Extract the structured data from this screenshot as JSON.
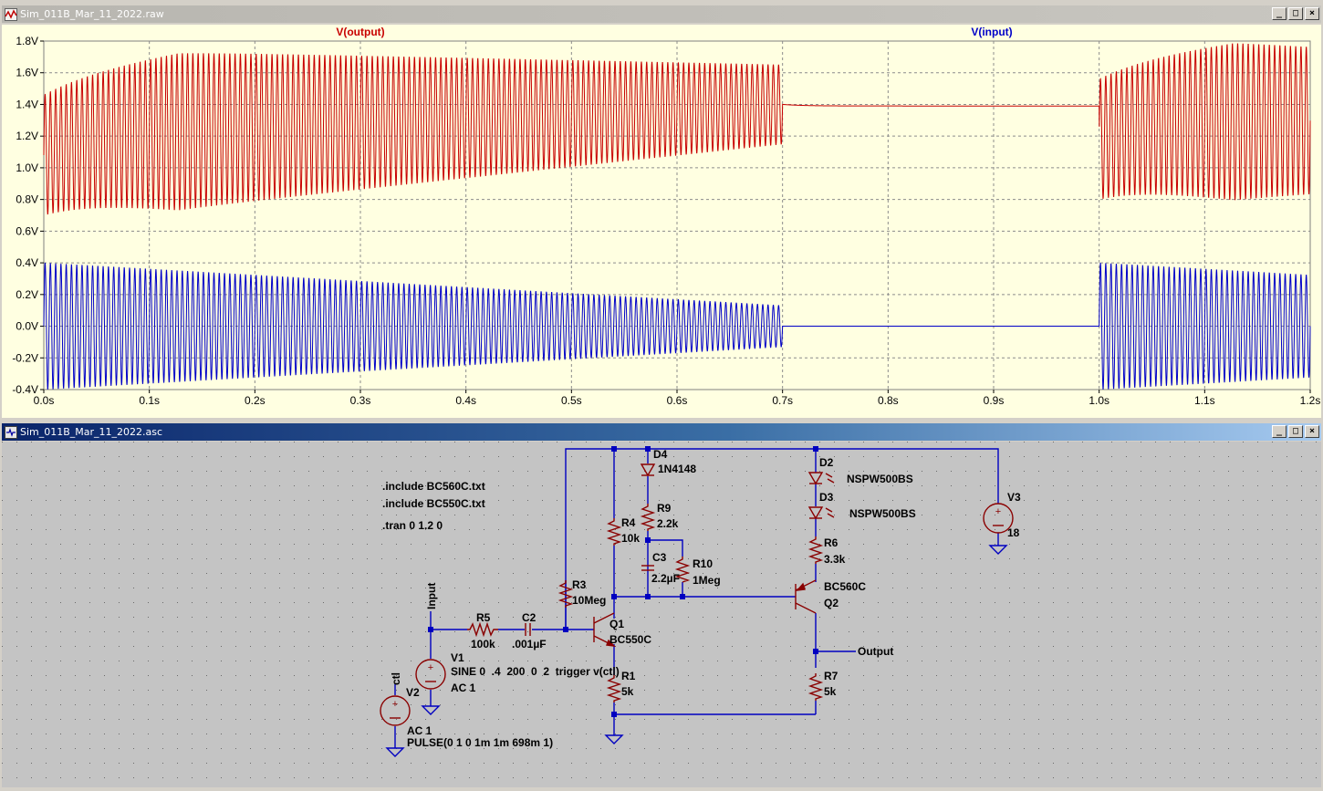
{
  "waveform_window": {
    "title": "Sim_011B_Mar_11_2022.raw",
    "controls": [
      "_",
      "□",
      "×"
    ]
  },
  "schematic_window": {
    "title": "Sim_011B_Mar_11_2022.asc",
    "controls": [
      "_",
      "□",
      "×"
    ]
  },
  "colors": {
    "output": "#c80000",
    "input": "#0000c8",
    "wire": "#0000c0",
    "component": "#8a0000"
  },
  "chart_data": {
    "type": "line",
    "series": [
      {
        "name": "V(output)",
        "color": "#c80000"
      },
      {
        "name": "V(input)",
        "color": "#0000c8"
      }
    ],
    "xlim": [
      0.0,
      1.2
    ],
    "ylim": [
      -0.4,
      1.8
    ],
    "x_ticks": [
      "0.0s",
      "0.1s",
      "0.2s",
      "0.3s",
      "0.4s",
      "0.5s",
      "0.6s",
      "0.7s",
      "0.8s",
      "0.9s",
      "1.0s",
      "1.1s",
      "1.2s"
    ],
    "y_ticks": [
      "1.8V",
      "1.6V",
      "1.4V",
      "1.2V",
      "1.0V",
      "0.8V",
      "0.6V",
      "0.4V",
      "0.2V",
      "0.0V",
      "-0.2V",
      "-0.4V"
    ],
    "grid": true
  },
  "schematic": {
    "directives": [
      ".include BC560C.txt",
      ".include BC550C.txt",
      ".tran 0 1.2 0"
    ],
    "labels": {
      "D4": "D4",
      "D4_val": "1N4148",
      "R9": "R9",
      "R9_val": "2.2k",
      "R4": "R4",
      "R4_val": "10k",
      "C3": "C3",
      "C3_val": "2.2µF",
      "R10": "R10",
      "R10_val": "1Meg",
      "R3": "R3",
      "R3_val": "10Meg",
      "R5": "R5",
      "R5_val": "100k",
      "C2": "C2",
      "C2_val": ".001µF",
      "Q1": "Q1",
      "Q1_val": "BC550C",
      "R1": "R1",
      "R1_val": "5k",
      "V1": "V1",
      "V1_val1": "SINE 0  .4  200  0  2  trigger v(ctl)",
      "V1_val2": "AC 1",
      "V2": "V2",
      "V2_val1": "AC 1",
      "V2_val2": "PULSE(0 1 0 1m 1m 698m 1)",
      "D2": "D2",
      "D2_val": "NSPW500BS",
      "D3": "D3",
      "D3_val": "NSPW500BS",
      "R6": "R6",
      "R6_val": "3.3k",
      "Q2_model": "BC560C",
      "Q2": "Q2",
      "R7": "R7",
      "R7_val": "5k",
      "V3": "V3",
      "V3_val": "18",
      "net_input": "Input",
      "net_output": "Output",
      "net_ctl": "ctl"
    }
  }
}
